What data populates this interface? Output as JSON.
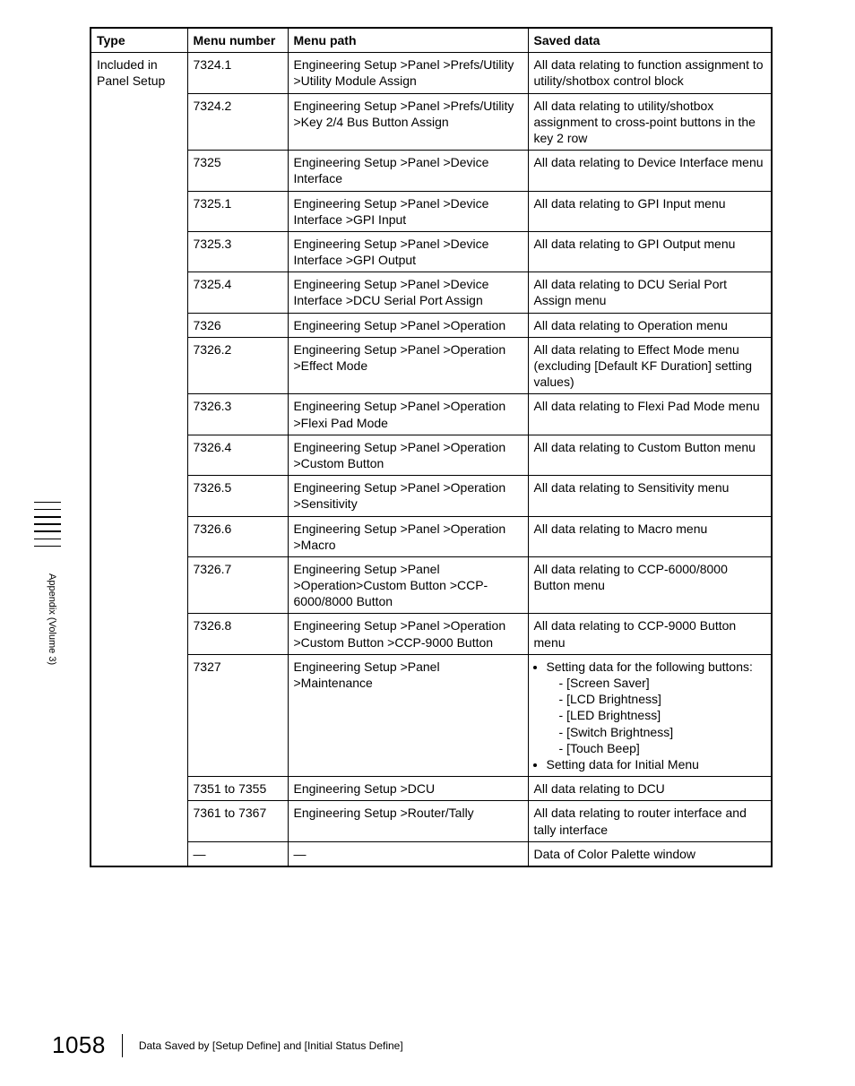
{
  "side_label": "Appendix (Volume 3)",
  "page_number": "1058",
  "footer_text": "Data Saved by [Setup Define] and [Initial Status Define]",
  "table": {
    "columns": [
      "Type",
      "Menu number",
      "Menu path",
      "Saved data"
    ],
    "type_cell": "Included in Panel Setup",
    "rows": [
      {
        "menu_number": "7324.1",
        "menu_path": "Engineering Setup >Panel >Prefs/Utility >Utility Module Assign",
        "saved_data": "All data relating to function assignment to utility/shotbox control block"
      },
      {
        "menu_number": "7324.2",
        "menu_path": "Engineering Setup >Panel >Prefs/Utility >Key 2/4 Bus Button Assign",
        "saved_data": "All data relating to utility/shotbox assignment to cross-point buttons in the key 2 row"
      },
      {
        "menu_number": "7325",
        "menu_path": "Engineering Setup >Panel >Device Interface",
        "saved_data": "All data relating to Device Interface menu"
      },
      {
        "menu_number": "7325.1",
        "menu_path": "Engineering Setup >Panel >Device Interface >GPI Input",
        "saved_data": "All data relating to GPI Input menu"
      },
      {
        "menu_number": "7325.3",
        "menu_path": "Engineering Setup >Panel >Device Interface >GPI Output",
        "saved_data": "All data relating to GPI Output menu"
      },
      {
        "menu_number": "7325.4",
        "menu_path": "Engineering Setup >Panel >Device Interface >DCU Serial Port Assign",
        "saved_data": "All data relating to DCU Serial Port Assign menu"
      },
      {
        "menu_number": "7326",
        "menu_path": "Engineering Setup >Panel >Operation",
        "saved_data": "All data relating to Operation menu"
      },
      {
        "menu_number": "7326.2",
        "menu_path": "Engineering Setup >Panel >Operation >Effect Mode",
        "saved_data": "All data relating to Effect Mode menu (excluding [Default KF Duration] setting values)"
      },
      {
        "menu_number": "7326.3",
        "menu_path": "Engineering Setup >Panel >Operation >Flexi Pad Mode",
        "saved_data": "All data relating to Flexi Pad Mode menu"
      },
      {
        "menu_number": "7326.4",
        "menu_path": "Engineering Setup >Panel >Operation >Custom Button",
        "saved_data": "All data relating to Custom Button menu"
      },
      {
        "menu_number": "7326.5",
        "menu_path": "Engineering Setup >Panel >Operation >Sensitivity",
        "saved_data": "All data relating to Sensitivity menu"
      },
      {
        "menu_number": "7326.6",
        "menu_path": "Engineering Setup >Panel >Operation >Macro",
        "saved_data": "All data relating to Macro menu"
      },
      {
        "menu_number": "7326.7",
        "menu_path": "Engineering Setup >Panel >Operation>Custom Button >CCP-6000/8000 Button",
        "saved_data": "All data relating to CCP-6000/8000 Button menu"
      },
      {
        "menu_number": "7326.8",
        "menu_path": "Engineering Setup >Panel >Operation >Custom Button >CCP-9000 Button",
        "saved_data": "All data relating to CCP-9000 Button menu"
      },
      {
        "menu_number": "7327",
        "menu_path": "Engineering Setup >Panel >Maintenance",
        "saved_data_complex": {
          "bullets": [
            {
              "text": "Setting data for the following buttons:",
              "sub": [
                "[Screen Saver]",
                "[LCD Brightness]",
                "[LED Brightness]",
                "[Switch Brightness]",
                "[Touch Beep]"
              ]
            },
            {
              "text": "Setting data for Initial Menu"
            }
          ]
        }
      },
      {
        "menu_number": "7351 to 7355",
        "menu_path": "Engineering Setup >DCU",
        "saved_data": "All data relating to DCU"
      },
      {
        "menu_number": "7361 to 7367",
        "menu_path": "Engineering Setup >Router/Tally",
        "saved_data": "All data relating to router interface and tally interface"
      },
      {
        "menu_number": "—",
        "menu_path": "—",
        "saved_data": "Data of Color Palette window"
      }
    ]
  }
}
